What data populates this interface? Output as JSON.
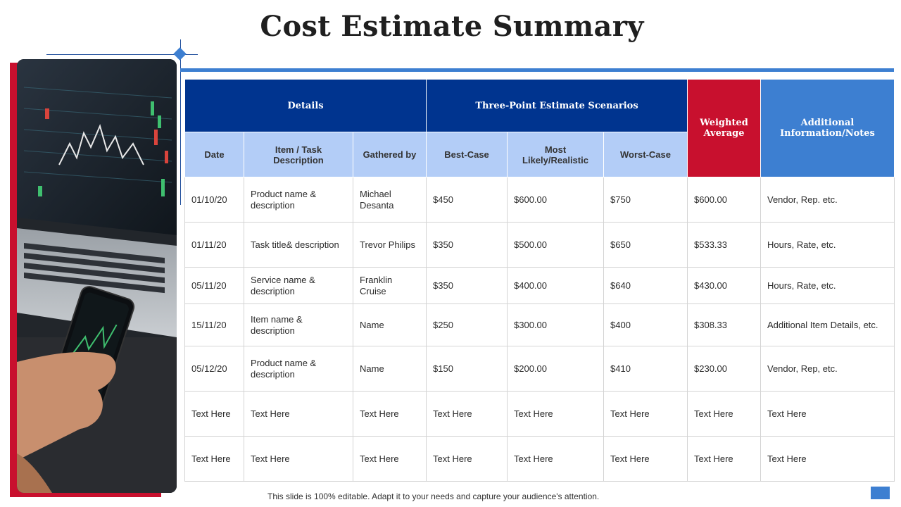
{
  "title": "Cost Estimate Summary",
  "footer": "This slide is 100% editable. Adapt it to your needs and capture your audience's attention.",
  "colors": {
    "navy": "#00348f",
    "accent_blue": "#3d7fd1",
    "red": "#c8102e",
    "light_blue": "#b3cdf7"
  },
  "table": {
    "group_headers": {
      "details": "Details",
      "scenarios": "Three-Point Estimate Scenarios",
      "weighted": "Weighted Average",
      "notes": "Additional Information/Notes"
    },
    "columns": {
      "date": "Date",
      "item": "Item / Task Description",
      "gathered": "Gathered by",
      "best": "Best-Case",
      "likely": "Most Likely/Realistic",
      "worst": "Worst-Case"
    },
    "rows": [
      {
        "date": "01/10/20",
        "item": "Product name & description",
        "gathered": "Michael Desanta",
        "best": "$450",
        "likely": "$600.00",
        "worst": "$750",
        "weighted": "$600.00",
        "notes": "Vendor, Rep. etc."
      },
      {
        "date": "01/11/20",
        "item": "Task title& description",
        "gathered": "Trevor  Philips",
        "best": "$350",
        "likely": "$500.00",
        "worst": "$650",
        "weighted": "$533.33",
        "notes": "Hours, Rate, etc."
      },
      {
        "date": "05/11/20",
        "item": "Service name & description",
        "gathered": "Franklin Cruise",
        "best": "$350",
        "likely": "$400.00",
        "worst": "$640",
        "weighted": "$430.00",
        "notes": "Hours, Rate, etc."
      },
      {
        "date": "15/11/20",
        "item": "Item name & description",
        "gathered": "Name",
        "best": "$250",
        "likely": "$300.00",
        "worst": "$400",
        "weighted": "$308.33",
        "notes": "Additional Item Details, etc."
      },
      {
        "date": "05/12/20",
        "item": "Product name & description",
        "gathered": "Name",
        "best": "$150",
        "likely": "$200.00",
        "worst": "$410",
        "weighted": "$230.00",
        "notes": "Vendor, Rep, etc."
      },
      {
        "date": "Text Here",
        "item": "Text Here",
        "gathered": "Text Here",
        "best": "Text Here",
        "likely": "Text Here",
        "worst": "Text Here",
        "weighted": "Text Here",
        "notes": "Text Here"
      },
      {
        "date": "Text Here",
        "item": "Text Here",
        "gathered": "Text Here",
        "best": "Text Here",
        "likely": "Text Here",
        "worst": "Text Here",
        "weighted": "Text Here",
        "notes": "Text Here"
      }
    ]
  }
}
